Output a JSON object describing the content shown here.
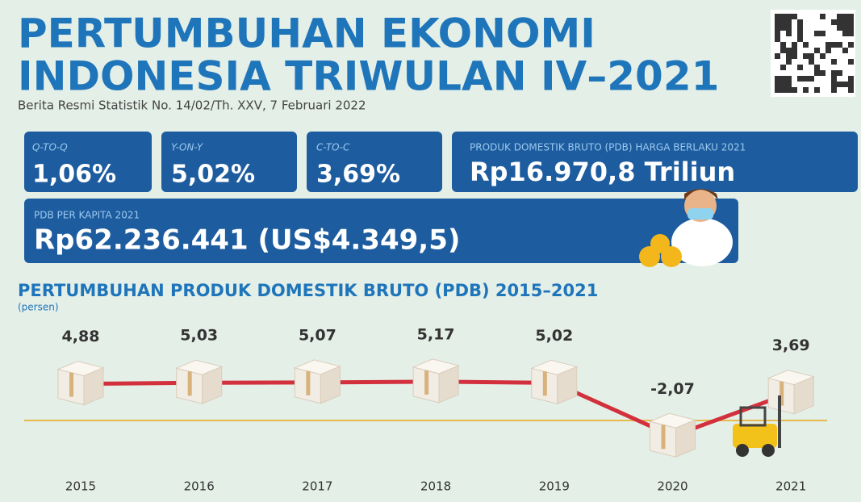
{
  "header": {
    "title_lines": [
      "PERTUMBUHAN EKONOMI",
      "INDONESIA TRIWULAN IV–2021"
    ],
    "subtitle": "Berita Resmi Statistik No. 14/02/Th. XXV, 7 Februari 2022"
  },
  "stats": [
    {
      "label": "Q-TO-Q",
      "value": "1,06%"
    },
    {
      "label": "Y-ON-Y",
      "value": "5,02%"
    },
    {
      "label": "C-TO-C",
      "value": "3,69%"
    },
    {
      "label": "PRODUK DOMESTIK BRUTO (PDB) HARGA BERLAKU 2021",
      "value": "Rp16.970,8 Triliun"
    }
  ],
  "per_capita": {
    "label": "PDB PER KAPITA 2021",
    "value": "Rp62.236.441 (US$4.349,5)"
  },
  "chart_data": {
    "type": "line",
    "title": "PERTUMBUHAN PRODUK DOMESTIK BRUTO (PDB) 2015–2021",
    "subtitle": "(persen)",
    "categories": [
      "2015",
      "2016",
      "2017",
      "2018",
      "2019",
      "2020",
      "2021"
    ],
    "values": [
      4.88,
      5.03,
      5.07,
      5.17,
      5.02,
      -2.07,
      3.69
    ],
    "value_labels": [
      "4,88",
      "5,03",
      "5,07",
      "5,17",
      "5,02",
      "-2,07",
      "3,69"
    ],
    "color": "#d2303c"
  }
}
